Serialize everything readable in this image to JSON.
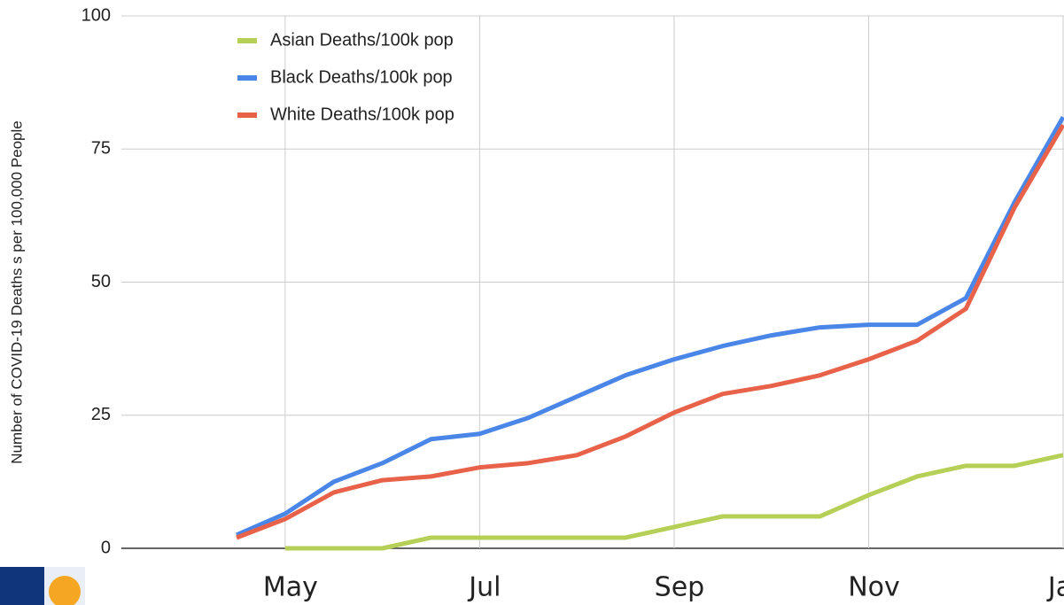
{
  "chart_data": {
    "type": "line",
    "y_label": "Number of COVID-19 Deaths s per 100,000 People",
    "categories": [
      null,
      "May",
      null,
      null,
      null,
      "Jul",
      null,
      null,
      null,
      "Sep",
      null,
      null,
      null,
      "Nov",
      null,
      null,
      null,
      "Jan"
    ],
    "series": [
      {
        "name": "Asian Deaths/100k pop",
        "color": "#b5cf57",
        "values": [
          null,
          0,
          0,
          0,
          2,
          2,
          2,
          2,
          2,
          4,
          6,
          6,
          6,
          10,
          13.5,
          15.5,
          15.5,
          17.5
        ]
      },
      {
        "name": "Black Deaths/100k pop",
        "color": "#4a86e8",
        "values": [
          2.5,
          6.5,
          12.5,
          16,
          20.5,
          21.5,
          24.5,
          28.5,
          32.5,
          35.5,
          38,
          40,
          41.5,
          42,
          42,
          47,
          65,
          81
        ]
      },
      {
        "name": "White Deaths/100k pop",
        "color": "#e8624a",
        "values": [
          2,
          5.5,
          10.5,
          12.8,
          13.5,
          15.2,
          16,
          17.5,
          21,
          25.5,
          29,
          30.5,
          32.5,
          35.5,
          39,
          45,
          64,
          79.5
        ]
      }
    ],
    "ylim": [
      0,
      100
    ],
    "yticks": [
      0,
      25,
      50,
      75,
      100
    ],
    "grid": true,
    "legend": "top-left"
  }
}
